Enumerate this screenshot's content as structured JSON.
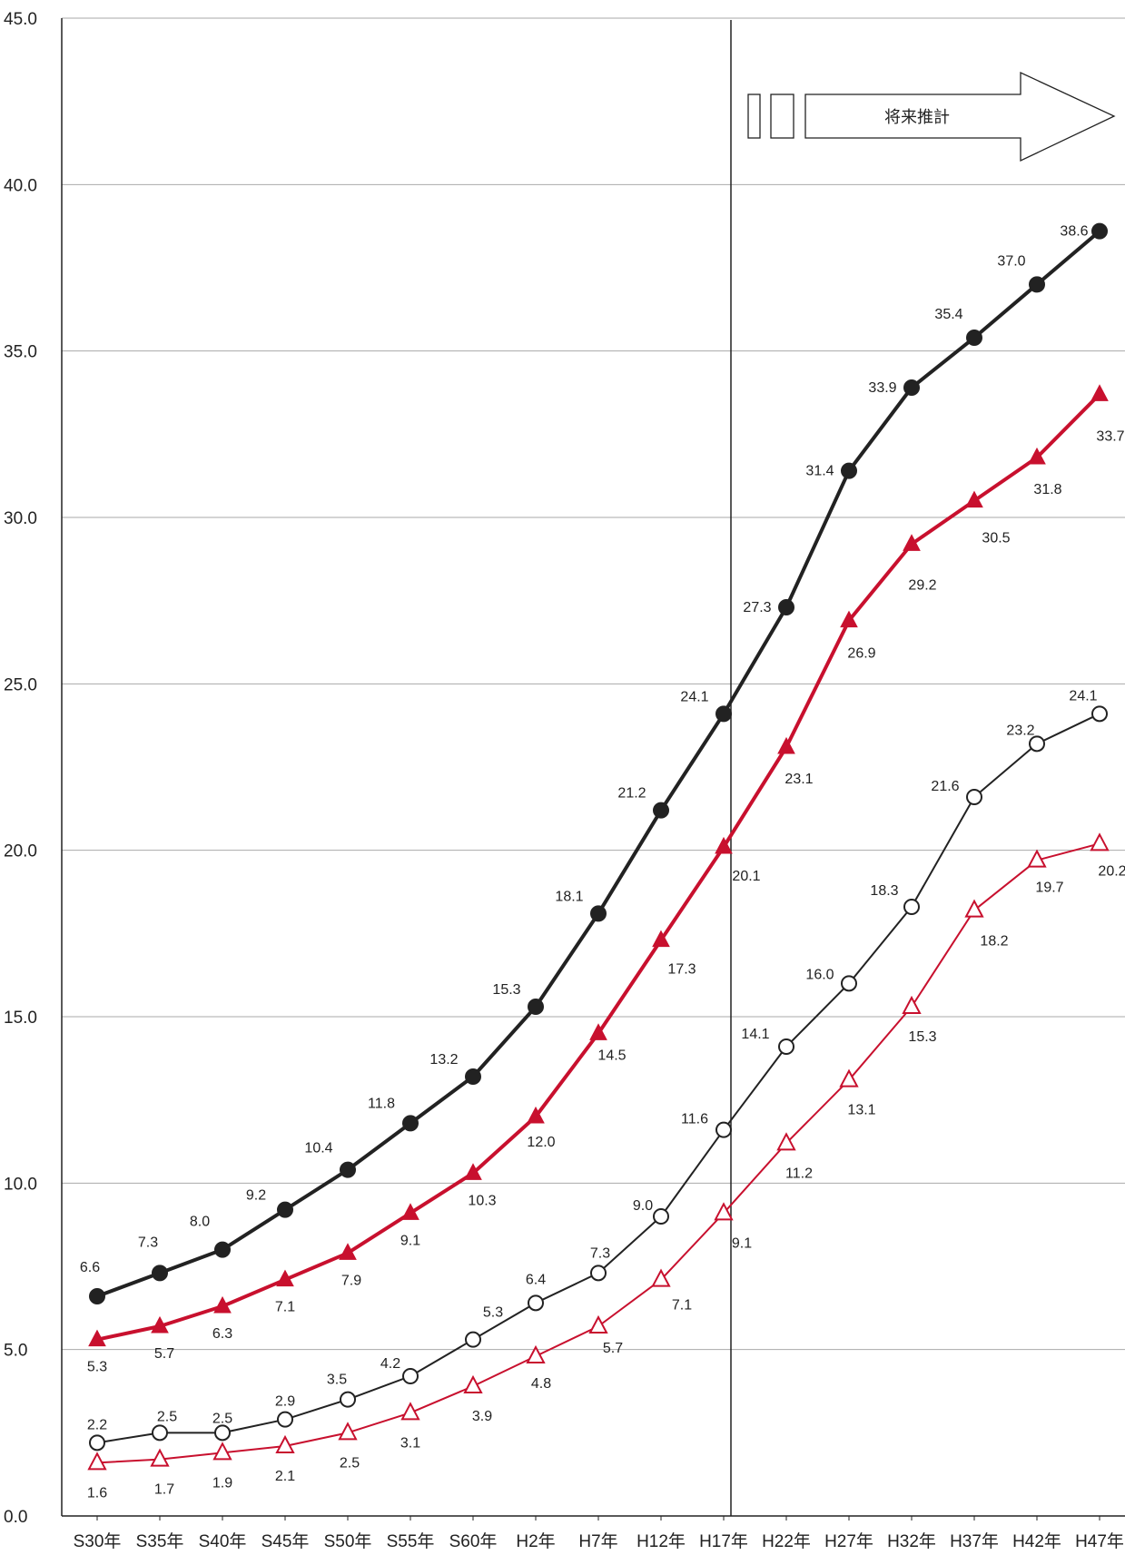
{
  "chart_data": {
    "type": "line",
    "categories": [
      "S30年",
      "S35年",
      "S40年",
      "S45年",
      "S50年",
      "S55年",
      "S60年",
      "H2年",
      "H7年",
      "H12年",
      "H17年",
      "H22年",
      "H27年",
      "H32年",
      "H37年",
      "H42年",
      "H47年"
    ],
    "ylim": [
      0,
      45
    ],
    "yticks": [
      "0.0",
      "5.0",
      "10.0",
      "15.0",
      "20.0",
      "25.0",
      "30.0",
      "35.0",
      "40.0",
      "45.0"
    ],
    "grid": true,
    "projection_label": "将来推計",
    "series": [
      {
        "marker": "filled-circle",
        "color": "#222222",
        "values": [
          6.6,
          7.3,
          8.0,
          9.2,
          10.4,
          11.8,
          13.2,
          15.3,
          18.1,
          21.2,
          24.1,
          27.3,
          31.4,
          33.9,
          35.4,
          37.0,
          38.6
        ],
        "labels": [
          "6.6",
          "7.3",
          "8.0",
          "9.2",
          "10.4",
          "11.8",
          "13.2",
          "15.3",
          "18.1",
          "21.2",
          "24.1",
          "27.3",
          "31.4",
          "33.9",
          "35.4",
          "37.0",
          "38.6"
        ]
      },
      {
        "marker": "filled-triangle",
        "color": "#c8102e",
        "values": [
          5.3,
          5.7,
          6.3,
          7.1,
          7.9,
          9.1,
          10.3,
          12.0,
          14.5,
          17.3,
          20.1,
          23.1,
          26.9,
          29.2,
          30.5,
          31.8,
          33.7
        ],
        "labels": [
          "5.3",
          "5.7",
          "6.3",
          "7.1",
          "7.9",
          "9.1",
          "10.3",
          "12.0",
          "14.5",
          "17.3",
          "20.1",
          "23.1",
          "26.9",
          "29.2",
          "30.5",
          "31.8",
          "33.7"
        ]
      },
      {
        "marker": "open-circle",
        "color": "#222222",
        "values": [
          2.2,
          2.5,
          2.5,
          2.9,
          3.5,
          4.2,
          5.3,
          6.4,
          7.3,
          9.0,
          11.6,
          14.1,
          16.0,
          18.3,
          21.6,
          23.2,
          24.1
        ],
        "labels": [
          "2.2",
          "2.5",
          "2.5",
          "2.9",
          "3.5",
          "4.2",
          "5.3",
          "6.4",
          "7.3",
          "9.0",
          "11.6",
          "14.1",
          "16.0",
          "18.3",
          "21.6",
          "23.2",
          "24.1"
        ]
      },
      {
        "marker": "open-triangle",
        "color": "#c8102e",
        "values": [
          1.6,
          1.7,
          1.9,
          2.1,
          2.5,
          3.1,
          3.9,
          4.8,
          5.7,
          7.1,
          9.1,
          11.2,
          13.1,
          15.3,
          18.2,
          19.7,
          20.2
        ],
        "labels": [
          "1.6",
          "1.7",
          "1.9",
          "2.1",
          "2.5",
          "3.1",
          "3.9",
          "4.8",
          "5.7",
          "7.1",
          "9.1",
          "11.2",
          "13.1",
          "15.3",
          "18.2",
          "19.7",
          "20.2"
        ]
      }
    ]
  }
}
